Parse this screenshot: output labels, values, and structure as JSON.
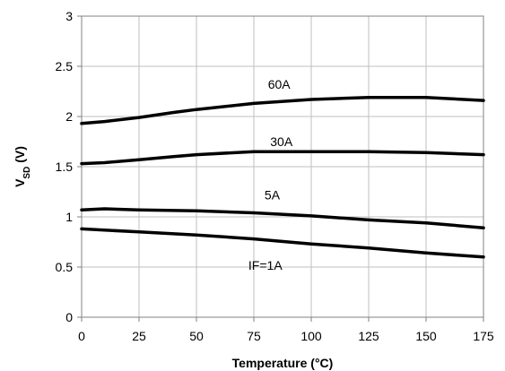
{
  "chart_data": {
    "type": "line",
    "title": "",
    "xlabel": "Temperature (°C)",
    "ylabel": {
      "base": "V",
      "sub": "SD",
      "unit": " (V)"
    },
    "xlim": [
      0,
      175
    ],
    "ylim": [
      0,
      3
    ],
    "xticks": [
      0,
      25,
      50,
      75,
      100,
      125,
      150,
      175
    ],
    "yticks": [
      0,
      0.5,
      1,
      1.5,
      2,
      2.5,
      3
    ],
    "xtick_labels": [
      "0",
      "25",
      "50",
      "75",
      "100",
      "125",
      "150",
      "175"
    ],
    "ytick_labels": [
      "0",
      "0.5",
      "1",
      "1.5",
      "2",
      "2.5",
      "3"
    ],
    "grid": true,
    "series": [
      {
        "name": "60A",
        "x": [
          0,
          10,
          25,
          40,
          50,
          75,
          100,
          125,
          150,
          175
        ],
        "y": [
          1.93,
          1.95,
          1.99,
          2.04,
          2.07,
          2.13,
          2.17,
          2.19,
          2.19,
          2.16
        ]
      },
      {
        "name": "30A",
        "x": [
          0,
          10,
          25,
          40,
          50,
          75,
          100,
          125,
          150,
          175
        ],
        "y": [
          1.53,
          1.54,
          1.57,
          1.6,
          1.62,
          1.65,
          1.65,
          1.65,
          1.64,
          1.62
        ]
      },
      {
        "name": "5A",
        "x": [
          0,
          10,
          25,
          50,
          75,
          100,
          125,
          150,
          175
        ],
        "y": [
          1.07,
          1.08,
          1.07,
          1.06,
          1.04,
          1.01,
          0.97,
          0.94,
          0.89
        ]
      },
      {
        "name": "IF=1A",
        "x": [
          0,
          25,
          50,
          75,
          100,
          125,
          150,
          175
        ],
        "y": [
          0.88,
          0.85,
          0.82,
          0.78,
          0.73,
          0.69,
          0.64,
          0.6
        ]
      }
    ],
    "series_label_positions": [
      {
        "text": "60A",
        "x": 86,
        "y": 2.32
      },
      {
        "text": "30A",
        "x": 87,
        "y": 1.75
      },
      {
        "text": "5A",
        "x": 83,
        "y": 1.22
      },
      {
        "text": "IF=1A",
        "x": 80,
        "y": 0.52
      }
    ],
    "colors": {
      "line": "#000000",
      "grid": "#bfbfbf",
      "axis": "#808080"
    }
  }
}
